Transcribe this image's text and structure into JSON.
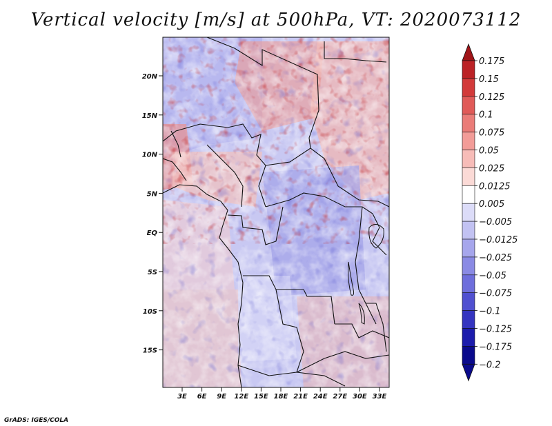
{
  "title": "Vertical velocity [m/s] at 500hPa, VT: 2020073112",
  "footer": "GrADS: IGES/COLA",
  "lat_ticks": [
    "20N",
    "15N",
    "10N",
    "5N",
    "EQ",
    "5S",
    "10S",
    "15S"
  ],
  "lon_ticks": [
    "3E",
    "6E",
    "9E",
    "12E",
    "15E",
    "18E",
    "21E",
    "24E",
    "27E",
    "30E",
    "33E"
  ],
  "colorbar": {
    "labels": [
      "0.175",
      "0.15",
      "0.125",
      "0.1",
      "0.075",
      "0.05",
      "0.025",
      "0.0125",
      "0.005",
      "-0.005",
      "-0.0125",
      "-0.025",
      "-0.05",
      "-0.075",
      "-0.1",
      "-0.125",
      "-0.175",
      "-0.2"
    ],
    "colors": [
      "#a01418",
      "#bb2226",
      "#d23a3a",
      "#e05a58",
      "#ea7c78",
      "#f29c98",
      "#f7bcb8",
      "#fbdad6",
      "#ffffff",
      "#dcdcf8",
      "#c2c2f2",
      "#a6a6ec",
      "#8a8ae4",
      "#6e6edc",
      "#5050d0",
      "#3434c0",
      "#1c1cac",
      "#0a0a8c"
    ]
  }
}
